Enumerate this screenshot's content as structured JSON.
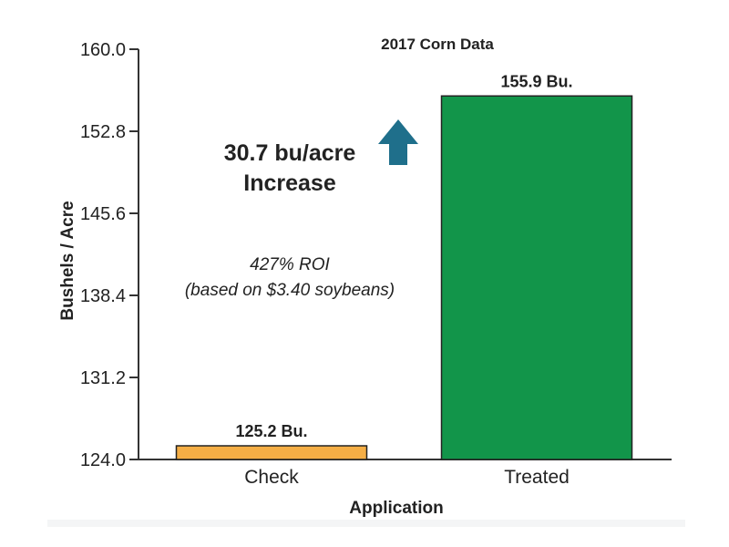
{
  "chart_data": {
    "type": "bar",
    "title": "2017 Corn Data",
    "xlabel": "Application",
    "ylabel": "Bushels / Acre",
    "ylim": [
      124.0,
      160.0
    ],
    "yticks": [
      "160.0",
      "152.8",
      "145.6",
      "138.4",
      "131.2",
      "124.0"
    ],
    "categories": [
      "Check",
      "Treated"
    ],
    "values": [
      125.2,
      155.9
    ],
    "data_labels": [
      "125.2 Bu.",
      "155.9 Bu."
    ],
    "colors": [
      "#f5ae45",
      "#12954a"
    ],
    "annotations": {
      "increase_line1": "30.7 bu/acre",
      "increase_line2": "Increase",
      "roi_line1": "427% ROI",
      "roi_line2": "(based on $3.40 soybeans)",
      "arrow_icon": "up-arrow-icon",
      "arrow_color": "#1f6f8b"
    },
    "grid": false,
    "legend": "none"
  }
}
